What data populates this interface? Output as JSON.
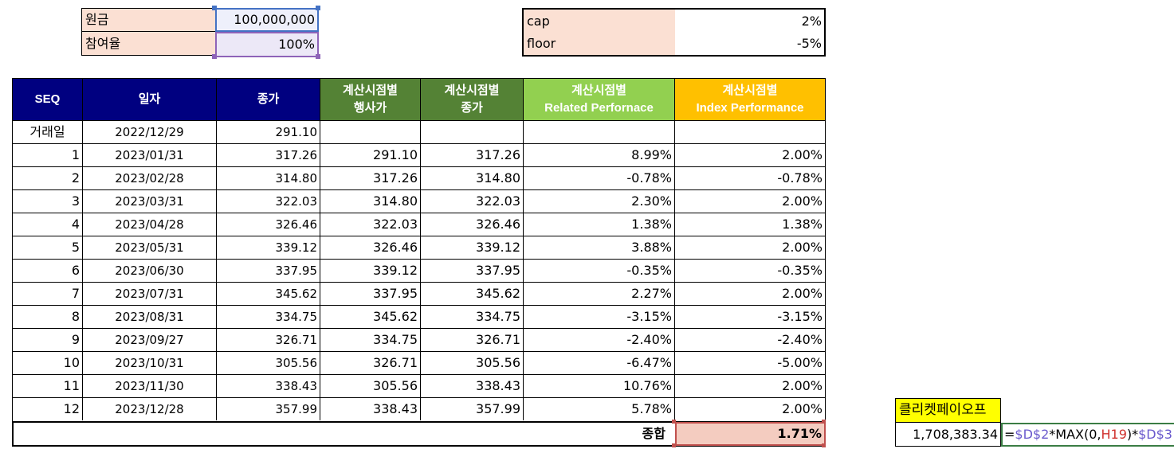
{
  "inputs": {
    "principal_label": "원금",
    "principal_value": "100,000,000",
    "participation_label": "참여율",
    "participation_value": "100%"
  },
  "caps": {
    "cap_label": "cap",
    "cap_value": "2%",
    "floor_label": "floor",
    "floor_value": "-5%"
  },
  "headers": {
    "seq": "SEQ",
    "date": "일자",
    "close": "종가",
    "strike_l1": "계산시점별",
    "strike_l2": "행사가",
    "calc_close_l1": "계산시점별",
    "calc_close_l2": "종가",
    "related_l1": "계산시점별",
    "related_l2": "Related Perfornace",
    "index_l1": "계산시점별",
    "index_l2": "Index Performance"
  },
  "header_colors": {
    "navy": "#000080",
    "dark_green": "#548235",
    "light_green": "#92d050",
    "orange": "#ffc000"
  },
  "trade_row": {
    "seq": "거래일",
    "date": "2022/12/29",
    "close": "291.10"
  },
  "rows": [
    {
      "seq": "1",
      "date": "2023/01/31",
      "close": "317.26",
      "strike": "291.10",
      "calc_close": "317.26",
      "related": "8.99%",
      "index": "2.00%"
    },
    {
      "seq": "2",
      "date": "2023/02/28",
      "close": "314.80",
      "strike": "317.26",
      "calc_close": "314.80",
      "related": "-0.78%",
      "index": "-0.78%"
    },
    {
      "seq": "3",
      "date": "2023/03/31",
      "close": "322.03",
      "strike": "314.80",
      "calc_close": "322.03",
      "related": "2.30%",
      "index": "2.00%"
    },
    {
      "seq": "4",
      "date": "2023/04/28",
      "close": "326.46",
      "strike": "322.03",
      "calc_close": "326.46",
      "related": "1.38%",
      "index": "1.38%"
    },
    {
      "seq": "5",
      "date": "2023/05/31",
      "close": "339.12",
      "strike": "326.46",
      "calc_close": "339.12",
      "related": "3.88%",
      "index": "2.00%"
    },
    {
      "seq": "6",
      "date": "2023/06/30",
      "close": "337.95",
      "strike": "339.12",
      "calc_close": "337.95",
      "related": "-0.35%",
      "index": "-0.35%"
    },
    {
      "seq": "7",
      "date": "2023/07/31",
      "close": "345.62",
      "strike": "337.95",
      "calc_close": "345.62",
      "related": "2.27%",
      "index": "2.00%"
    },
    {
      "seq": "8",
      "date": "2023/08/31",
      "close": "334.75",
      "strike": "345.62",
      "calc_close": "334.75",
      "related": "-3.15%",
      "index": "-3.15%"
    },
    {
      "seq": "9",
      "date": "2023/09/27",
      "close": "326.71",
      "strike": "334.75",
      "calc_close": "326.71",
      "related": "-2.40%",
      "index": "-2.40%"
    },
    {
      "seq": "10",
      "date": "2023/10/31",
      "close": "305.56",
      "strike": "326.71",
      "calc_close": "305.56",
      "related": "-6.47%",
      "index": "-5.00%"
    },
    {
      "seq": "11",
      "date": "2023/11/30",
      "close": "338.43",
      "strike": "305.56",
      "calc_close": "338.43",
      "related": "10.76%",
      "index": "2.00%"
    },
    {
      "seq": "12",
      "date": "2023/12/28",
      "close": "357.99",
      "strike": "338.43",
      "calc_close": "357.99",
      "related": "5.78%",
      "index": "2.00%"
    }
  ],
  "total": {
    "label": "종합",
    "value": "1.71%"
  },
  "cliquet": {
    "label": "클리켓페이오프",
    "value": "1,708,383.34",
    "formula_prefix": "=",
    "formula_ref1": "$D$2",
    "formula_mid": "*MAX(0,",
    "formula_ref2": "H19",
    "formula_mid2": ")*",
    "formula_ref3": "$D$3"
  }
}
